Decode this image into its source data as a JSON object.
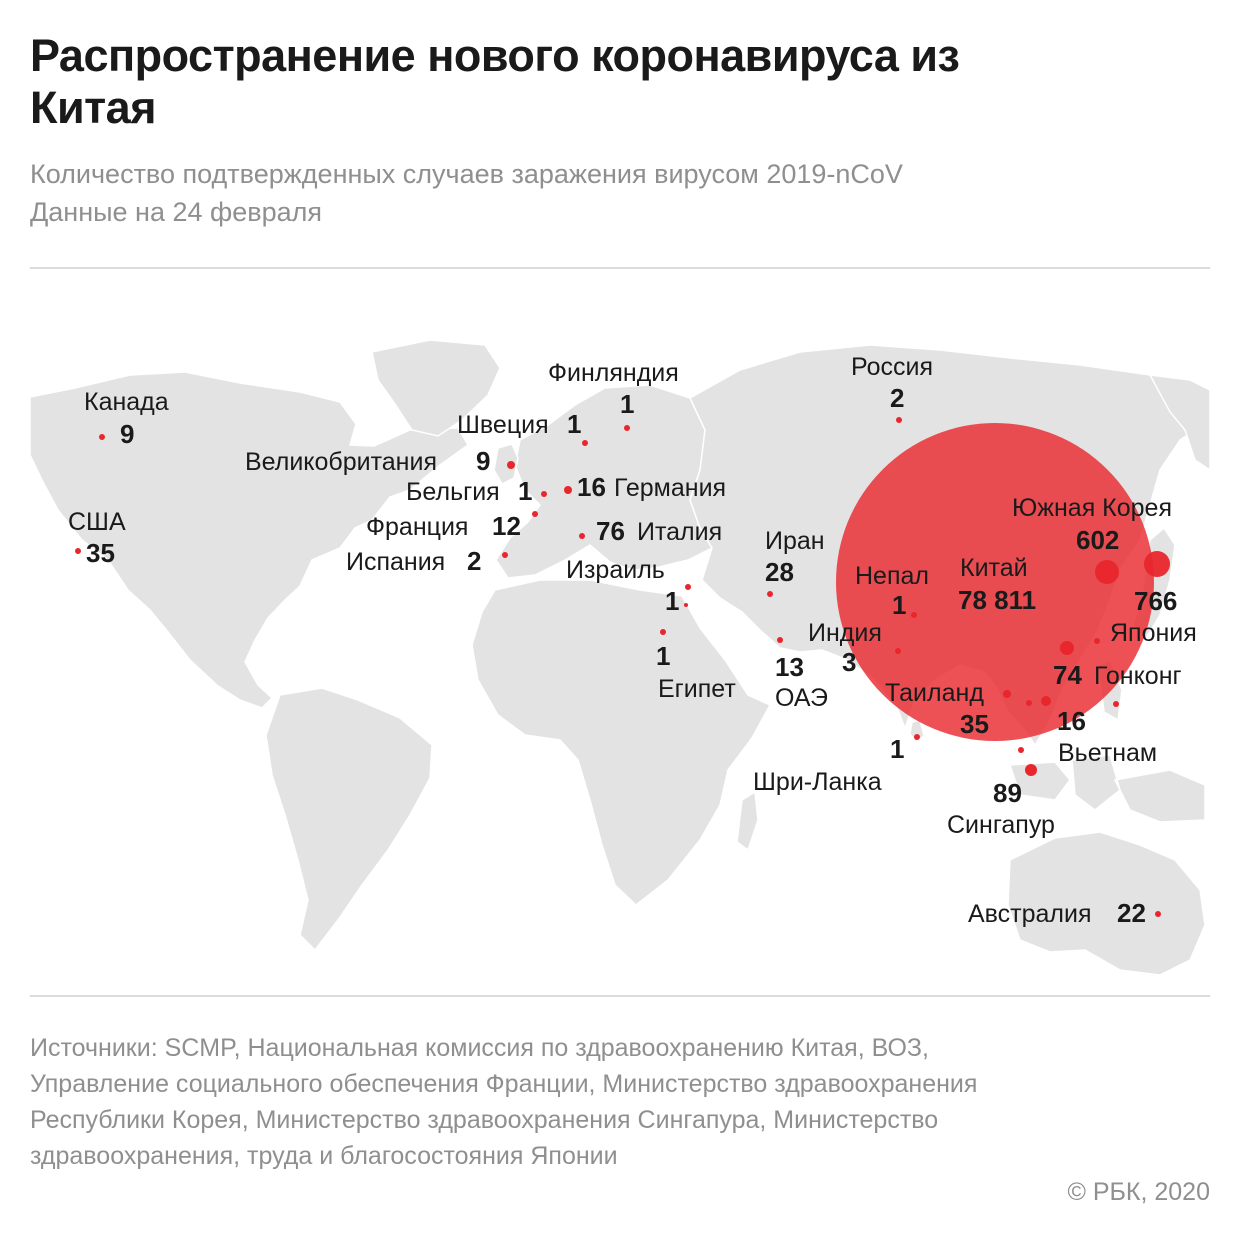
{
  "header": {
    "title": "Распространение нового коронавируса из Китая",
    "subtitle_line1": "Количество подтвержденных случаев заражения вирусом 2019-nCoV",
    "subtitle_line2": "Данные на 24 февраля"
  },
  "colors": {
    "land": "#e3e3e3",
    "border": "#ffffff",
    "marker": "#e8262c",
    "big_circle": "#e8262c",
    "text": "#1a1a1a",
    "muted": "#8f8f8f"
  },
  "map": {
    "countries": [
      {
        "id": "china",
        "name": "Китай",
        "cases": "78 811"
      },
      {
        "id": "south-korea",
        "name": "Южная Корея",
        "cases": "602"
      },
      {
        "id": "japan",
        "name": "Япония",
        "cases": "766"
      },
      {
        "id": "singapore",
        "name": "Сингапур",
        "cases": "89"
      },
      {
        "id": "italy",
        "name": "Италия",
        "cases": "76"
      },
      {
        "id": "hong-kong",
        "name": "Гонконг",
        "cases": "74"
      },
      {
        "id": "usa",
        "name": "США",
        "cases": "35"
      },
      {
        "id": "thailand",
        "name": "Таиланд",
        "cases": "35"
      },
      {
        "id": "iran",
        "name": "Иран",
        "cases": "28"
      },
      {
        "id": "australia",
        "name": "Австралия",
        "cases": "22"
      },
      {
        "id": "germany",
        "name": "Германия",
        "cases": "16"
      },
      {
        "id": "vietnam",
        "name": "Вьетнам",
        "cases": "16"
      },
      {
        "id": "uae",
        "name": "ОАЭ",
        "cases": "13"
      },
      {
        "id": "france",
        "name": "Франция",
        "cases": "12"
      },
      {
        "id": "canada",
        "name": "Канада",
        "cases": "9"
      },
      {
        "id": "uk",
        "name": "Великобритания",
        "cases": "9"
      },
      {
        "id": "india",
        "name": "Индия",
        "cases": "3"
      },
      {
        "id": "russia",
        "name": "Россия",
        "cases": "2"
      },
      {
        "id": "spain",
        "name": "Испания",
        "cases": "2"
      },
      {
        "id": "finland",
        "name": "Финляндия",
        "cases": "1"
      },
      {
        "id": "sweden",
        "name": "Швеция",
        "cases": "1"
      },
      {
        "id": "belgium",
        "name": "Бельгия",
        "cases": "1"
      },
      {
        "id": "israel",
        "name": "Израиль",
        "cases": "1"
      },
      {
        "id": "egypt",
        "name": "Египет",
        "cases": "1"
      },
      {
        "id": "nepal",
        "name": "Непал",
        "cases": "1"
      },
      {
        "id": "sri-lanka",
        "name": "Шри-Ланка",
        "cases": "1"
      }
    ]
  },
  "footer": {
    "sources": "Источники: SCMP, Национальная комиссия по здравоохранению Китая, ВОЗ, Управление социального обеспечения Франции, Министерство здравоохранения Республики Корея, Министерство здравоохранения Сингапура, Министерство здравоохранения, труда и благосостояния Японии",
    "copyright": "© РБК, 2020"
  }
}
